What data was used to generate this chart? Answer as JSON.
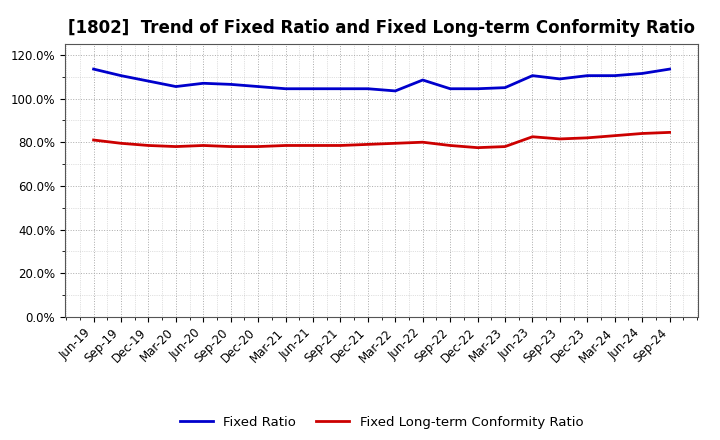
{
  "title": "[1802]  Trend of Fixed Ratio and Fixed Long-term Conformity Ratio",
  "x_labels": [
    "Jun-19",
    "Sep-19",
    "Dec-19",
    "Mar-20",
    "Jun-20",
    "Sep-20",
    "Dec-20",
    "Mar-21",
    "Jun-21",
    "Sep-21",
    "Dec-21",
    "Mar-22",
    "Jun-22",
    "Sep-22",
    "Dec-22",
    "Mar-23",
    "Jun-23",
    "Sep-23",
    "Dec-23",
    "Mar-24",
    "Jun-24",
    "Sep-24"
  ],
  "fixed_ratio": [
    113.5,
    110.5,
    108.0,
    105.5,
    107.0,
    106.5,
    105.5,
    104.5,
    104.5,
    104.5,
    104.5,
    103.5,
    108.5,
    104.5,
    104.5,
    105.0,
    110.5,
    109.0,
    110.5,
    110.5,
    111.5,
    113.5
  ],
  "fixed_longterm_ratio": [
    81.0,
    79.5,
    78.5,
    78.0,
    78.5,
    78.0,
    78.0,
    78.5,
    78.5,
    78.5,
    79.0,
    79.5,
    80.0,
    78.5,
    77.5,
    78.0,
    82.5,
    81.5,
    82.0,
    83.0,
    84.0,
    84.5
  ],
  "fixed_ratio_color": "#0000cc",
  "fixed_longterm_color": "#cc0000",
  "background_color": "#ffffff",
  "plot_bg_color": "#ffffff",
  "grid_color": "#aaaaaa",
  "ylim": [
    0,
    125
  ],
  "yticks": [
    0,
    20,
    40,
    60,
    80,
    100,
    120
  ],
  "ytick_labels": [
    "0.0%",
    "20.0%",
    "40.0%",
    "60.0%",
    "80.0%",
    "100.0%",
    "120.0%"
  ],
  "legend_fixed": "Fixed Ratio",
  "legend_longterm": "Fixed Long-term Conformity Ratio",
  "title_fontsize": 12,
  "tick_fontsize": 8.5,
  "legend_fontsize": 9.5,
  "line_width": 2.0
}
